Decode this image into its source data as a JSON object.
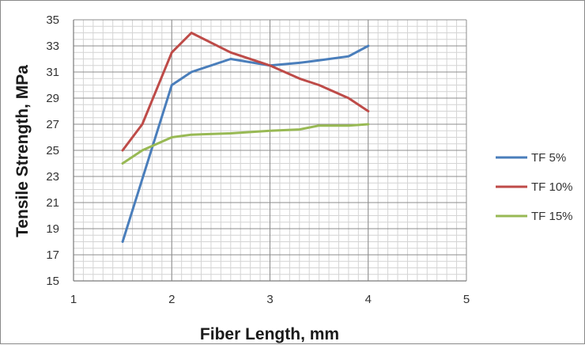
{
  "chart_data": {
    "type": "line",
    "xlabel": "Fiber Length, mm",
    "ylabel": "Tensile Strength, MPa",
    "xlim": [
      1,
      5
    ],
    "ylim": [
      15,
      35
    ],
    "x_ticks": [
      1,
      2,
      3,
      4,
      5
    ],
    "y_ticks": [
      15,
      17,
      19,
      21,
      23,
      25,
      27,
      29,
      31,
      33,
      35
    ],
    "grid": true,
    "minor_grid": true,
    "legend_position": "right",
    "series": [
      {
        "name": "TF 5%",
        "color": "#4a7ebb",
        "points": [
          [
            1.5,
            18.0
          ],
          [
            2.0,
            30.0
          ],
          [
            2.2,
            31.0
          ],
          [
            2.6,
            32.0
          ],
          [
            3.0,
            31.5
          ],
          [
            3.3,
            31.7
          ],
          [
            3.5,
            31.9
          ],
          [
            3.8,
            32.2
          ],
          [
            4.0,
            33.0
          ]
        ]
      },
      {
        "name": "TF 10%",
        "color": "#be4b48",
        "points": [
          [
            1.5,
            25.0
          ],
          [
            1.7,
            27.0
          ],
          [
            2.0,
            32.5
          ],
          [
            2.2,
            34.0
          ],
          [
            2.6,
            32.5
          ],
          [
            3.0,
            31.5
          ],
          [
            3.3,
            30.5
          ],
          [
            3.5,
            30.0
          ],
          [
            3.8,
            29.0
          ],
          [
            4.0,
            28.0
          ]
        ]
      },
      {
        "name": "TF 15%",
        "color": "#98b954",
        "points": [
          [
            1.5,
            24.0
          ],
          [
            1.7,
            25.0
          ],
          [
            2.0,
            26.0
          ],
          [
            2.2,
            26.2
          ],
          [
            2.6,
            26.3
          ],
          [
            3.0,
            26.5
          ],
          [
            3.3,
            26.6
          ],
          [
            3.5,
            26.9
          ],
          [
            3.8,
            26.9
          ],
          [
            4.0,
            27.0
          ]
        ]
      }
    ]
  }
}
